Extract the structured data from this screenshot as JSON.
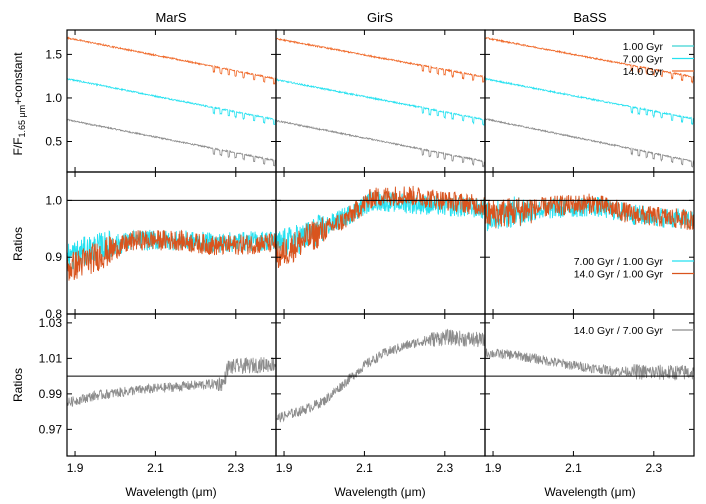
{
  "chart_data": {
    "type": "line",
    "x_axis": {
      "label": "Wavelength (μm)",
      "range": [
        1.88,
        2.4
      ],
      "ticks": [
        1.9,
        2.1,
        2.3
      ],
      "tick_labels": [
        "1.9",
        "2.1",
        "2.3"
      ]
    },
    "columns": [
      {
        "key": "mars",
        "title": "MarS"
      },
      {
        "key": "girs",
        "title": "GirS"
      },
      {
        "key": "bass",
        "title": "BaSS"
      }
    ],
    "colors": {
      "1.00 Gyr": "#3fd3d3",
      "7.00 Gyr": "#25e1f0",
      "14.0 Gyr": "#f06a2a",
      "ratio_7_1": "#25e1f0",
      "ratio_14_1": "#d9541e",
      "ratio_14_7": "#8c8c8c",
      "axes": "#000000"
    },
    "rows": [
      {
        "key": "spectra",
        "ylabel_main": "F/F",
        "ylabel_sub": "1.65 μm",
        "ylabel_tail": "+constant",
        "ylim": [
          0.15,
          1.78
        ],
        "yticks": [
          0.5,
          1.0,
          1.5
        ],
        "ytick_labels": [
          "0.5",
          "1.0",
          "1.5"
        ],
        "legend": [
          "1.00 Gyr",
          "7.00 Gyr",
          "14.0 Gyr"
        ],
        "series": [
          {
            "name": "1.00 Gyr",
            "color": "#8c8c8c",
            "values": {
              "mars": [
                [
                  1.88,
                  0.75
                ],
                [
                  2.4,
                  0.28
                ]
              ],
              "girs": [
                [
                  1.88,
                  0.74
                ],
                [
                  2.4,
                  0.27
                ]
              ],
              "bass": [
                [
                  1.88,
                  0.76
                ],
                [
                  2.4,
                  0.27
                ]
              ]
            }
          },
          {
            "name": "7.00 Gyr",
            "color": "#25e1f0",
            "values": {
              "mars": [
                [
                  1.88,
                  1.22
                ],
                [
                  2.4,
                  0.75
                ]
              ],
              "girs": [
                [
                  1.88,
                  1.21
                ],
                [
                  2.4,
                  0.75
                ]
              ],
              "bass": [
                [
                  1.88,
                  1.22
                ],
                [
                  2.4,
                  0.76
                ]
              ]
            }
          },
          {
            "name": "14.0 Gyr",
            "color": "#f06a2a",
            "values": {
              "mars": [
                [
                  1.88,
                  1.69
                ],
                [
                  2.4,
                  1.22
                ]
              ],
              "girs": [
                [
                  1.88,
                  1.68
                ],
                [
                  2.4,
                  1.24
                ]
              ],
              "bass": [
                [
                  1.88,
                  1.69
                ],
                [
                  2.4,
                  1.24
                ]
              ]
            }
          }
        ]
      },
      {
        "key": "ratios1",
        "ylabel": "Ratios",
        "ylim": [
          0.8,
          1.05
        ],
        "yticks": [
          0.8,
          0.9,
          1.0
        ],
        "ytick_labels": [
          "0.8",
          "0.9",
          "1.0"
        ],
        "reference_line": 1.0,
        "legend": [
          "7.00 Gyr / 1.00 Gyr",
          "14.0 Gyr / 1.00 Gyr"
        ],
        "series": [
          {
            "name": "7.00 Gyr / 1.00 Gyr",
            "color": "#25e1f0",
            "values": {
              "mars": [
                [
                  1.88,
                  0.9
                ],
                [
                  1.95,
                  0.915
                ],
                [
                  2.05,
                  0.93
                ],
                [
                  2.15,
                  0.93
                ],
                [
                  2.25,
                  0.925
                ],
                [
                  2.4,
                  0.93
                ]
              ],
              "girs": [
                [
                  1.88,
                  0.92
                ],
                [
                  1.95,
                  0.935
                ],
                [
                  2.05,
                  0.97
                ],
                [
                  2.12,
                  1.0
                ],
                [
                  2.2,
                  0.995
                ],
                [
                  2.3,
                  0.99
                ],
                [
                  2.4,
                  0.985
                ]
              ],
              "bass": [
                [
                  1.88,
                  0.97
                ],
                [
                  1.95,
                  0.98
                ],
                [
                  2.05,
                  0.985
                ],
                [
                  2.15,
                  0.99
                ],
                [
                  2.25,
                  0.975
                ],
                [
                  2.4,
                  0.965
                ]
              ]
            }
          },
          {
            "name": "14.0 Gyr / 1.00 Gyr",
            "color": "#d9541e",
            "values": {
              "mars": [
                [
                  1.88,
                  0.88
                ],
                [
                  1.95,
                  0.9
                ],
                [
                  2.05,
                  0.93
                ],
                [
                  2.15,
                  0.93
                ],
                [
                  2.25,
                  0.92
                ],
                [
                  2.4,
                  0.925
                ]
              ],
              "girs": [
                [
                  1.88,
                  0.9
                ],
                [
                  1.95,
                  0.93
                ],
                [
                  2.05,
                  0.965
                ],
                [
                  2.12,
                  1.005
                ],
                [
                  2.2,
                  1.01
                ],
                [
                  2.3,
                  1.0
                ],
                [
                  2.4,
                  0.99
                ]
              ],
              "bass": [
                [
                  1.88,
                  0.975
                ],
                [
                  1.95,
                  0.98
                ],
                [
                  2.05,
                  0.99
                ],
                [
                  2.15,
                  0.995
                ],
                [
                  2.25,
                  0.975
                ],
                [
                  2.4,
                  0.965
                ]
              ]
            }
          }
        ]
      },
      {
        "key": "ratios2",
        "ylabel": "Ratios",
        "ylim": [
          0.955,
          1.035
        ],
        "yticks": [
          0.97,
          0.99,
          1.01,
          1.03
        ],
        "ytick_labels": [
          "0.97",
          "0.99",
          "1.01",
          "1.03"
        ],
        "reference_line": 1.0,
        "legend": [
          "14.0 Gyr / 7.00 Gyr"
        ],
        "series": [
          {
            "name": "14.0 Gyr / 7.00 Gyr",
            "color": "#8c8c8c",
            "values": {
              "mars": [
                [
                  1.88,
                  0.985
                ],
                [
                  1.95,
                  0.989
                ],
                [
                  2.05,
                  0.992
                ],
                [
                  2.15,
                  0.994
                ],
                [
                  2.27,
                  0.996
                ],
                [
                  2.28,
                  1.005
                ],
                [
                  2.4,
                  1.007
                ]
              ],
              "girs": [
                [
                  1.88,
                  0.976
                ],
                [
                  1.95,
                  0.981
                ],
                [
                  2.0,
                  0.986
                ],
                [
                  2.05,
                  0.996
                ],
                [
                  2.1,
                  1.006
                ],
                [
                  2.15,
                  1.013
                ],
                [
                  2.2,
                  1.017
                ],
                [
                  2.25,
                  1.02
                ],
                [
                  2.3,
                  1.022
                ],
                [
                  2.4,
                  1.02
                ]
              ],
              "bass": [
                [
                  1.88,
                  1.013
                ],
                [
                  1.95,
                  1.012
                ],
                [
                  2.0,
                  1.01
                ],
                [
                  2.1,
                  1.006
                ],
                [
                  2.2,
                  1.003
                ],
                [
                  2.3,
                  1.002
                ],
                [
                  2.4,
                  1.002
                ]
              ]
            }
          }
        ]
      }
    ],
    "grid": false
  }
}
